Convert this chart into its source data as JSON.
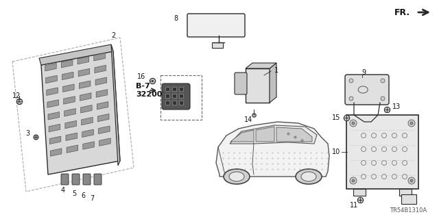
{
  "bg_color": "#ffffff",
  "line_color": "#2a2a2a",
  "text_color": "#111111",
  "diagram_ref": "TR54B1310A",
  "figsize": [
    6.4,
    3.2
  ],
  "dpi": 100,
  "fr_text": "FR.",
  "b7_text": "B-7\n32200",
  "part_numbers": [
    "1",
    "2",
    "3",
    "4",
    "5",
    "6",
    "7",
    "8",
    "9",
    "10",
    "11",
    "12",
    "13",
    "14",
    "15",
    "16"
  ]
}
